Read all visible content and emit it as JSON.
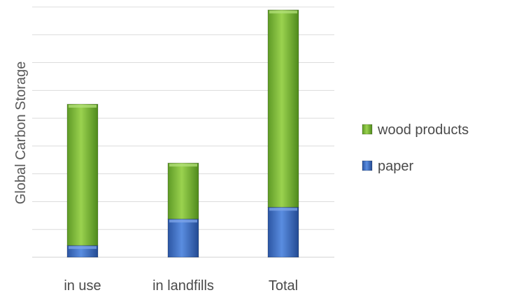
{
  "chart_data": {
    "type": "bar",
    "stacked": true,
    "title": "",
    "xlabel": "",
    "ylabel": "Global Carbon Storage",
    "categories": [
      "in use",
      "in landfills",
      "Total"
    ],
    "series": [
      {
        "name": "paper",
        "values": [
          0.4,
          1.3,
          1.7
        ],
        "color": "#4472c4"
      },
      {
        "name": "wood products",
        "values": [
          4.8,
          1.9,
          6.7
        ],
        "color": "#7cba3a"
      }
    ],
    "ylim": [
      0,
      8.5
    ],
    "grid": true,
    "gridline_count": 9,
    "legend_placement": "right",
    "y_tick_labels_shown": false
  }
}
